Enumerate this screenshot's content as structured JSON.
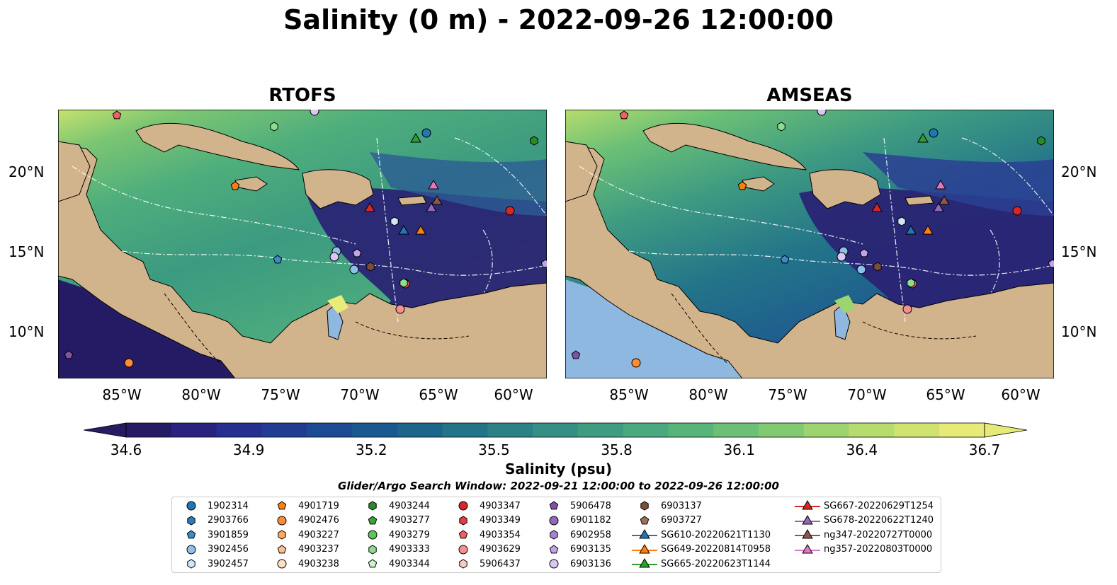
{
  "title": "Salinity (0 m) - 2022-09-26 12:00:00",
  "panels": [
    {
      "title": "RTOFS"
    },
    {
      "title": "AMSEAS"
    }
  ],
  "lat_ticks": [
    "20°N",
    "15°N",
    "10°N"
  ],
  "lon_ticks": [
    "85°W",
    "80°W",
    "75°W",
    "70°W",
    "65°W",
    "60°W"
  ],
  "colorbar": {
    "label": "Salinity (psu)",
    "min": 34.6,
    "max": 36.7,
    "ticks": [
      "34.6",
      "34.9",
      "35.2",
      "35.5",
      "35.8",
      "36.1",
      "36.4",
      "36.7"
    ],
    "colors": [
      "#261c64",
      "#29237f",
      "#262f90",
      "#203d93",
      "#1b4c93",
      "#19598f",
      "#1c668c",
      "#237489",
      "#2c8186",
      "#358f84",
      "#3f9c81",
      "#4aa97e",
      "#58b57a",
      "#6bc076",
      "#82ca72",
      "#9cd46f",
      "#b6dc6e",
      "#d0e371",
      "#e6ea77"
    ]
  },
  "search_window": "Glider/Argo Search Window: 2022-09-21 12:00:00 to 2022-09-26 12:00:00",
  "legend": [
    {
      "label": "1902314",
      "marker": "circle",
      "color": "#1f77b4"
    },
    {
      "label": "2903766",
      "marker": "hexagon",
      "color": "#2b7bba"
    },
    {
      "label": "3901859",
      "marker": "pentagon",
      "color": "#3a8cc8"
    },
    {
      "label": "3902456",
      "marker": "circle",
      "color": "#8fc0ea"
    },
    {
      "label": "3902457",
      "marker": "hexagon",
      "color": "#cfe6f6"
    },
    {
      "label": "4901719",
      "marker": "pentagon",
      "color": "#ff7f0e"
    },
    {
      "label": "4902476",
      "marker": "circle",
      "color": "#ff8c32"
    },
    {
      "label": "4903227",
      "marker": "hexagon",
      "color": "#ffa85e"
    },
    {
      "label": "4903237",
      "marker": "pentagon",
      "color": "#ffc08c"
    },
    {
      "label": "4903238",
      "marker": "circle",
      "color": "#ffe0c0"
    },
    {
      "label": "4903244",
      "marker": "hexagon",
      "color": "#2a8a2a"
    },
    {
      "label": "4903277",
      "marker": "pentagon",
      "color": "#3aa33a"
    },
    {
      "label": "4903279",
      "marker": "circle",
      "color": "#5cc55c"
    },
    {
      "label": "4903333",
      "marker": "hexagon",
      "color": "#8fdc8f"
    },
    {
      "label": "4903344",
      "marker": "pentagon",
      "color": "#ccf5c8"
    },
    {
      "label": "4903347",
      "marker": "circle",
      "color": "#d62728"
    },
    {
      "label": "4903349",
      "marker": "hexagon",
      "color": "#e04040"
    },
    {
      "label": "4903354",
      "marker": "pentagon",
      "color": "#f06060"
    },
    {
      "label": "4903629",
      "marker": "circle",
      "color": "#f59090"
    },
    {
      "label": "5906437",
      "marker": "hexagon",
      "color": "#fcc8c8"
    },
    {
      "label": "5906478",
      "marker": "pentagon",
      "color": "#7e52a8"
    },
    {
      "label": "6901182",
      "marker": "circle",
      "color": "#9467bd"
    },
    {
      "label": "6902958",
      "marker": "hexagon",
      "color": "#a883d0"
    },
    {
      "label": "6903135",
      "marker": "pentagon",
      "color": "#c3a3e6"
    },
    {
      "label": "6903136",
      "marker": "circle",
      "color": "#dcc6f3"
    },
    {
      "label": "6903137",
      "marker": "hexagon",
      "color": "#7a4f3a"
    },
    {
      "label": "6903727",
      "marker": "pentagon",
      "color": "#a3705a"
    },
    {
      "label": "SG610-20220621T1130",
      "marker": "triangle-line",
      "color": "#1f77b4"
    },
    {
      "label": "SG649-20220814T0958",
      "marker": "triangle-line",
      "color": "#ff7f0e"
    },
    {
      "label": "SG665-20220623T1144",
      "marker": "triangle-line",
      "color": "#2ca02c"
    },
    {
      "label": "SG667-20220629T1254",
      "marker": "triangle-line",
      "color": "#d62728"
    },
    {
      "label": "SG678-20220622T1240",
      "marker": "triangle-line",
      "color": "#9467bd"
    },
    {
      "label": "ng347-20220727T0000",
      "marker": "triangle-line",
      "color": "#8c564b"
    },
    {
      "label": "ng357-20220803T0000",
      "marker": "triangle-line",
      "color": "#e377c2"
    }
  ]
}
